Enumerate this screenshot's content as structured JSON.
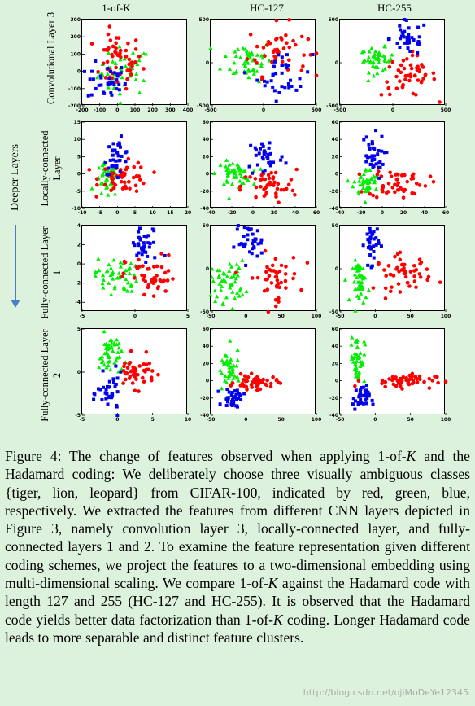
{
  "figure": {
    "columns": [
      "1-of-K",
      "HC-127",
      "HC-255"
    ],
    "rows": [
      "Convolutional Layer 3",
      "Locally-connected Layer",
      "Fully-connected Layer 1",
      "Fully-connected Layer 2"
    ],
    "side_label": "Deeper Layers",
    "colors": {
      "red": "#ff0000",
      "green": "#00ee00",
      "blue": "#0000ee",
      "arrow": "#4a7fc7"
    }
  },
  "chart_data": [
    {
      "type": "scatter",
      "row": 0,
      "col": 0,
      "xlim": [
        -200,
        400
      ],
      "ylim": [
        -200,
        300
      ],
      "xticks": [
        -200,
        -100,
        0,
        100,
        200,
        300,
        400
      ],
      "yticks": [
        -200,
        -100,
        0,
        100,
        200,
        300
      ],
      "clusters": {
        "red": {
          "cx": 0,
          "cy": 60,
          "sx": 70,
          "sy": 80,
          "n": 50
        },
        "green": {
          "cx": 40,
          "cy": 0,
          "sx": 75,
          "sy": 70,
          "n": 45
        },
        "blue": {
          "cx": -60,
          "cy": -60,
          "sx": 55,
          "sy": 55,
          "n": 35
        }
      }
    },
    {
      "type": "scatter",
      "row": 0,
      "col": 1,
      "xlim": [
        -500,
        500
      ],
      "ylim": [
        -500,
        500
      ],
      "xticks": [
        -500,
        0,
        500
      ],
      "yticks": [
        -500,
        0,
        500
      ],
      "clusters": {
        "red": {
          "cx": 130,
          "cy": 150,
          "sx": 140,
          "sy": 150,
          "n": 45
        },
        "green": {
          "cx": -150,
          "cy": 30,
          "sx": 120,
          "sy": 120,
          "n": 50
        },
        "blue": {
          "cx": 200,
          "cy": -150,
          "sx": 130,
          "sy": 140,
          "n": 35
        }
      }
    },
    {
      "type": "scatter",
      "row": 0,
      "col": 2,
      "xlim": [
        -500,
        500
      ],
      "ylim": [
        -500,
        500
      ],
      "xticks": [
        -500,
        0,
        500
      ],
      "yticks": [
        -500,
        0,
        500
      ],
      "clusters": {
        "red": {
          "cx": 150,
          "cy": -150,
          "sx": 130,
          "sy": 120,
          "n": 50
        },
        "green": {
          "cx": -150,
          "cy": 30,
          "sx": 80,
          "sy": 70,
          "n": 45
        },
        "blue": {
          "cx": 150,
          "cy": 280,
          "sx": 90,
          "sy": 100,
          "n": 35
        }
      }
    },
    {
      "type": "scatter",
      "row": 1,
      "col": 0,
      "xlim": [
        -10,
        20
      ],
      "ylim": [
        -10,
        15
      ],
      "xticks": [
        -10,
        -5,
        0,
        5,
        10,
        15,
        20
      ],
      "yticks": [
        -10,
        -5,
        0,
        5,
        10,
        15
      ],
      "clusters": {
        "red": {
          "cx": 2,
          "cy": -1,
          "sx": 3.5,
          "sy": 2.2,
          "n": 50
        },
        "green": {
          "cx": -3,
          "cy": -2,
          "sx": 1.6,
          "sy": 2.5,
          "n": 45
        },
        "blue": {
          "cx": 0,
          "cy": 5,
          "sx": 1.8,
          "sy": 2.5,
          "n": 35
        }
      }
    },
    {
      "type": "scatter",
      "row": 1,
      "col": 1,
      "xlim": [
        -40,
        60
      ],
      "ylim": [
        -40,
        60
      ],
      "xticks": [
        -40,
        -20,
        0,
        20,
        40,
        60
      ],
      "yticks": [
        -40,
        -20,
        0,
        20,
        40,
        60
      ],
      "clusters": {
        "red": {
          "cx": 15,
          "cy": -15,
          "sx": 13,
          "sy": 10,
          "n": 45
        },
        "green": {
          "cx": -18,
          "cy": 0,
          "sx": 8,
          "sy": 7,
          "n": 50
        },
        "blue": {
          "cx": 12,
          "cy": 20,
          "sx": 9,
          "sy": 12,
          "n": 35
        }
      }
    },
    {
      "type": "scatter",
      "row": 1,
      "col": 2,
      "xlim": [
        -40,
        60
      ],
      "ylim": [
        -40,
        60
      ],
      "xticks": [
        -40,
        -20,
        0,
        20,
        40,
        60
      ],
      "yticks": [
        -40,
        -20,
        0,
        20,
        40,
        60
      ],
      "clusters": {
        "red": {
          "cx": 15,
          "cy": -10,
          "sx": 14,
          "sy": 9,
          "n": 50
        },
        "green": {
          "cx": -15,
          "cy": -10,
          "sx": 6,
          "sy": 8,
          "n": 45
        },
        "blue": {
          "cx": -10,
          "cy": 20,
          "sx": 6,
          "sy": 13,
          "n": 35
        }
      }
    },
    {
      "type": "scatter",
      "row": 2,
      "col": 0,
      "xlim": [
        -5,
        5
      ],
      "ylim": [
        -5,
        4
      ],
      "xticks": [
        -5,
        0,
        5
      ],
      "yticks": [
        -4,
        -2,
        0,
        2,
        4
      ],
      "clusters": {
        "red": {
          "cx": 1.5,
          "cy": -1.5,
          "sx": 1.2,
          "sy": 1.2,
          "n": 45
        },
        "green": {
          "cx": -1.8,
          "cy": -1.2,
          "sx": 1.0,
          "sy": 0.9,
          "n": 50
        },
        "blue": {
          "cx": 1.0,
          "cy": 1.8,
          "sx": 0.8,
          "sy": 1.0,
          "n": 35
        }
      }
    },
    {
      "type": "scatter",
      "row": 2,
      "col": 1,
      "xlim": [
        -50,
        100
      ],
      "ylim": [
        -50,
        50
      ],
      "xticks": [
        -50,
        0,
        50,
        100
      ],
      "yticks": [
        -50,
        0,
        50
      ],
      "clusters": {
        "red": {
          "cx": 40,
          "cy": -10,
          "sx": 18,
          "sy": 14,
          "n": 45
        },
        "green": {
          "cx": -25,
          "cy": -15,
          "sx": 12,
          "sy": 12,
          "n": 50
        },
        "blue": {
          "cx": 5,
          "cy": 30,
          "sx": 10,
          "sy": 10,
          "n": 35
        }
      }
    },
    {
      "type": "scatter",
      "row": 2,
      "col": 2,
      "xlim": [
        -50,
        100
      ],
      "ylim": [
        -50,
        50
      ],
      "xticks": [
        -50,
        0,
        50,
        100
      ],
      "yticks": [
        -50,
        0,
        50
      ],
      "clusters": {
        "red": {
          "cx": 40,
          "cy": -5,
          "sx": 20,
          "sy": 10,
          "n": 50
        },
        "green": {
          "cx": -20,
          "cy": -15,
          "sx": 6,
          "sy": 12,
          "n": 45
        },
        "blue": {
          "cx": -5,
          "cy": 30,
          "sx": 5,
          "sy": 12,
          "n": 35
        }
      }
    },
    {
      "type": "scatter",
      "row": 3,
      "col": 0,
      "xlim": [
        -5,
        10
      ],
      "ylim": [
        -5,
        5
      ],
      "xticks": [
        -5,
        0,
        5,
        10
      ],
      "yticks": [
        -5,
        0,
        5
      ],
      "clusters": {
        "red": {
          "cx": 2.5,
          "cy": 0,
          "sx": 1.4,
          "sy": 0.9,
          "n": 45
        },
        "green": {
          "cx": -1,
          "cy": 2,
          "sx": 0.8,
          "sy": 1.2,
          "n": 45
        },
        "blue": {
          "cx": -1,
          "cy": -2.5,
          "sx": 0.9,
          "sy": 1.1,
          "n": 35
        }
      }
    },
    {
      "type": "scatter",
      "row": 3,
      "col": 1,
      "xlim": [
        -50,
        100
      ],
      "ylim": [
        -40,
        60
      ],
      "xticks": [
        -50,
        0,
        50,
        100
      ],
      "yticks": [
        -40,
        -20,
        0,
        20,
        40,
        60
      ],
      "clusters": {
        "red": {
          "cx": 15,
          "cy": -2,
          "sx": 15,
          "sy": 4,
          "n": 50
        },
        "green": {
          "cx": -25,
          "cy": 10,
          "sx": 8,
          "sy": 14,
          "n": 45
        },
        "blue": {
          "cx": -18,
          "cy": -20,
          "sx": 7,
          "sy": 6,
          "n": 35
        }
      }
    },
    {
      "type": "scatter",
      "row": 3,
      "col": 2,
      "xlim": [
        -50,
        100
      ],
      "ylim": [
        -40,
        60
      ],
      "xticks": [
        -50,
        0,
        50,
        100
      ],
      "yticks": [
        -40,
        -20,
        0,
        20,
        40,
        60
      ],
      "clusters": {
        "red": {
          "cx": 35,
          "cy": 0,
          "sx": 25,
          "sy": 4,
          "n": 50
        },
        "green": {
          "cx": -25,
          "cy": 25,
          "sx": 5,
          "sy": 14,
          "n": 45
        },
        "blue": {
          "cx": -20,
          "cy": -20,
          "sx": 6,
          "sy": 7,
          "n": 35
        }
      }
    }
  ],
  "caption": {
    "label": "Figure 4:",
    "pre_k1": " The change of features observed when applying 1-of-",
    "k": "K",
    "mid1": " and the Hadamard coding: We deliberately choose three visually ambiguous classes {tiger, lion, leopard} from CIFAR-100, indicated by red, green, blue, respectively. We extracted the features from different CNN layers depicted in Figure 3, namely convolution layer 3, locally-connected layer, and fully-connected layers 1 and 2. To examine the feature representation given different coding schemes, we project the features to a two-dimensional embedding using multi-dimensional scaling. We compare 1-of-",
    "mid2": " against the Hadamard code with length 127 and 255 (HC-127 and HC-255). It is observed that the Hadamard code yields better data factorization than 1-of-",
    "end": " coding. Longer Hadamard code leads to more separable and distinct feature clusters."
  },
  "watermark": "http://blog.csdn.net/ojiMoDeYe12345"
}
